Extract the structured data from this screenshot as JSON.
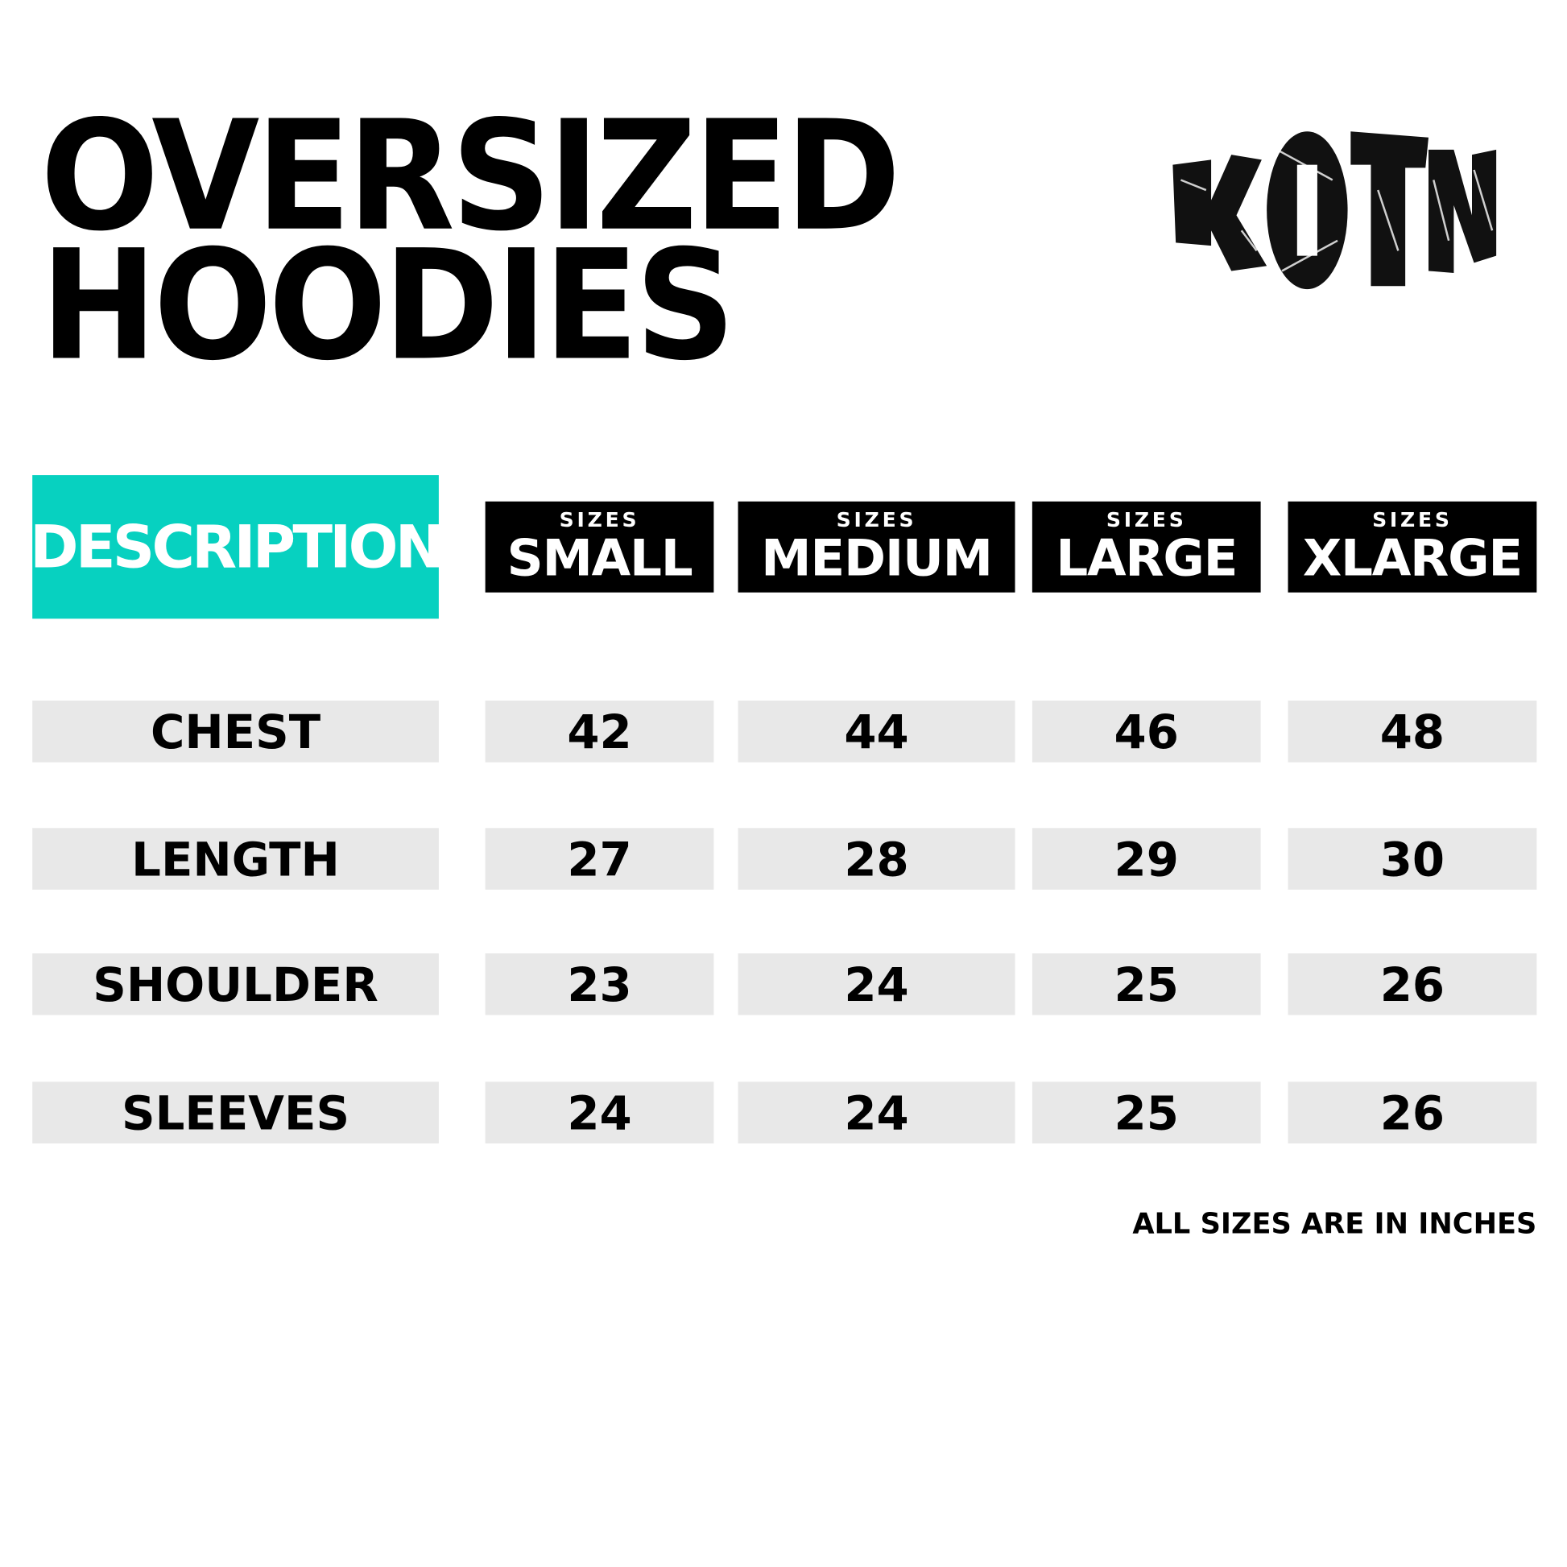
{
  "title": {
    "line1": "OVERSIZED",
    "line2": "HOODIES"
  },
  "logo": {
    "text": "KOTN"
  },
  "colors": {
    "accent": "#07d1c0",
    "header_bg": "#000000",
    "cell_bg": "#e8e8e8"
  },
  "table": {
    "description_label": "DESCRIPTION",
    "columns": [
      {
        "sub": "SIZES",
        "label": "SMALL"
      },
      {
        "sub": "SIZES",
        "label": "MEDIUM"
      },
      {
        "sub": "SIZES",
        "label": "LARGE"
      },
      {
        "sub": "SIZES",
        "label": "XLARGE"
      }
    ],
    "rows": [
      {
        "label": "CHEST",
        "values": [
          "42",
          "44",
          "46",
          "48"
        ]
      },
      {
        "label": "LENGTH",
        "values": [
          "27",
          "28",
          "29",
          "30"
        ]
      },
      {
        "label": "SHOULDER",
        "values": [
          "23",
          "24",
          "25",
          "26"
        ]
      },
      {
        "label": "SLEEVES",
        "values": [
          "24",
          "24",
          "25",
          "26"
        ]
      }
    ]
  },
  "note": "ALL SIZES ARE IN INCHES"
}
